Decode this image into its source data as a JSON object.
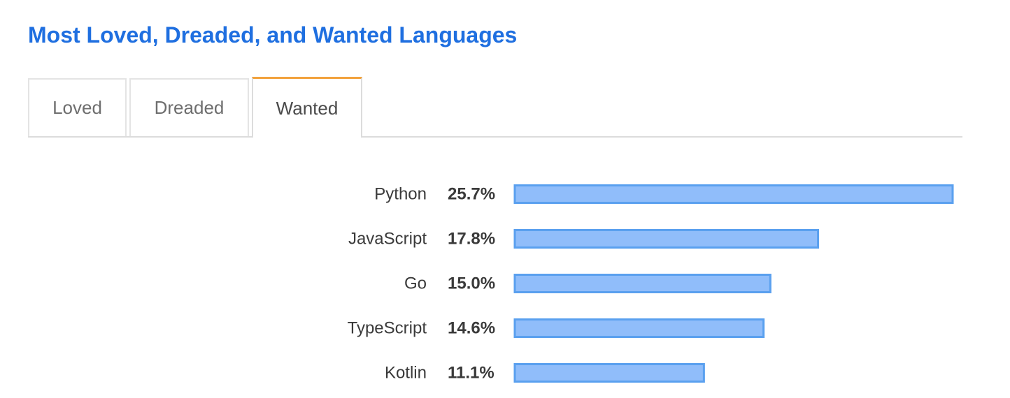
{
  "title": "Most Loved, Dreaded, and Wanted Languages",
  "tabs": [
    {
      "label": "Loved",
      "active": false
    },
    {
      "label": "Dreaded",
      "active": false
    },
    {
      "label": "Wanted",
      "active": true
    }
  ],
  "colors": {
    "title": "#1f6fe0",
    "tab_active_accent": "#f2a23c",
    "bar_fill": "#90bdfa",
    "bar_stroke": "#5aa0ef"
  },
  "chart_data": {
    "type": "bar",
    "orientation": "horizontal",
    "categories": [
      "Python",
      "JavaScript",
      "Go",
      "TypeScript",
      "Kotlin"
    ],
    "values": [
      25.7,
      17.8,
      15.0,
      14.6,
      11.1
    ],
    "value_labels": [
      "25.7%",
      "17.8%",
      "15.0%",
      "14.6%",
      "11.1%"
    ],
    "xlim": [
      0,
      25.7
    ],
    "grid": false,
    "legend": "none"
  }
}
